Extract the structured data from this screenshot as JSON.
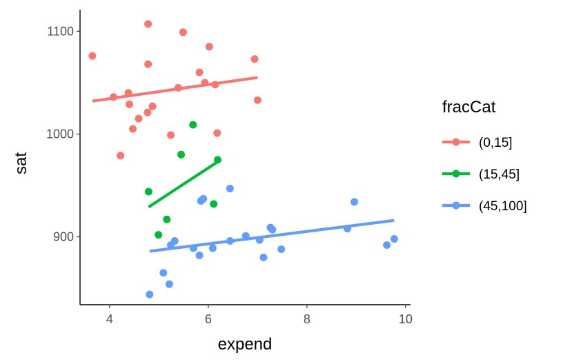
{
  "chart_data": {
    "type": "scatter",
    "xlabel": "expend",
    "ylabel": "sat",
    "xlim": [
      3.4,
      10.1
    ],
    "ylim": [
      834,
      1121
    ],
    "x_ticks": [
      4,
      6,
      8,
      10
    ],
    "y_ticks": [
      900,
      1000,
      1100
    ],
    "grid": false,
    "legend": {
      "title": "fracCat",
      "placement": "right",
      "items": [
        "(0,15]",
        "(15,45]",
        "(45,100]"
      ]
    },
    "colors": [
      "#F8766D",
      "#00BA38",
      "#619CFF"
    ],
    "series": [
      {
        "name": "(0,15]",
        "color": "#F8766D",
        "points": [
          [
            3.65,
            1076
          ],
          [
            4.08,
            1036
          ],
          [
            4.22,
            979
          ],
          [
            4.38,
            1040
          ],
          [
            4.4,
            1029
          ],
          [
            4.47,
            1005
          ],
          [
            4.59,
            1015
          ],
          [
            4.77,
            1021
          ],
          [
            4.78,
            1068
          ],
          [
            4.78,
            1107
          ],
          [
            4.87,
            1027
          ],
          [
            5.24,
            999
          ],
          [
            5.39,
            1045
          ],
          [
            5.49,
            1099
          ],
          [
            5.82,
            1060
          ],
          [
            5.93,
            1050
          ],
          [
            6.02,
            1085
          ],
          [
            6.14,
            1048
          ],
          [
            6.18,
            1001
          ],
          [
            6.94,
            1073
          ],
          [
            7.0,
            1033
          ]
        ],
        "fit": [
          [
            3.65,
            1032
          ],
          [
            7.0,
            1055
          ]
        ]
      },
      {
        "name": "(15,45]",
        "color": "#00BA38",
        "points": [
          [
            4.79,
            944
          ],
          [
            4.99,
            902
          ],
          [
            5.16,
            917
          ],
          [
            5.45,
            980
          ],
          [
            5.69,
            1009
          ],
          [
            6.11,
            932
          ],
          [
            6.19,
            975
          ]
        ],
        "fit": [
          [
            4.79,
            929
          ],
          [
            6.19,
            973
          ]
        ]
      },
      {
        "name": "(45,100]",
        "color": "#619CFF",
        "points": [
          [
            4.81,
            844
          ],
          [
            5.09,
            865
          ],
          [
            5.21,
            854
          ],
          [
            5.24,
            892
          ],
          [
            5.32,
            896
          ],
          [
            5.7,
            889
          ],
          [
            5.82,
            882
          ],
          [
            5.85,
            935
          ],
          [
            5.9,
            937
          ],
          [
            6.09,
            889
          ],
          [
            6.44,
            896
          ],
          [
            6.44,
            947
          ],
          [
            6.76,
            901
          ],
          [
            7.04,
            897
          ],
          [
            7.12,
            880
          ],
          [
            7.26,
            909
          ],
          [
            7.3,
            907
          ],
          [
            7.48,
            888
          ],
          [
            8.82,
            908
          ],
          [
            8.96,
            934
          ],
          [
            9.62,
            892
          ],
          [
            9.77,
            898
          ]
        ],
        "fit": [
          [
            4.81,
            886
          ],
          [
            9.77,
            916
          ]
        ]
      }
    ]
  }
}
